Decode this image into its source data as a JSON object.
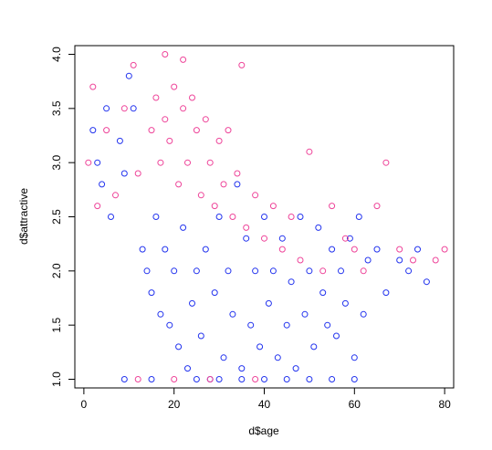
{
  "chart_data": {
    "type": "scatter",
    "title": "",
    "xlabel": "d$age",
    "ylabel": "d$attractive",
    "xlim": [
      -2,
      82
    ],
    "ylim": [
      0.92,
      4.08
    ],
    "x_ticks": [
      "0",
      "20",
      "40",
      "60",
      "80"
    ],
    "y_ticks": [
      "1.0",
      "1.5",
      "2.0",
      "2.5",
      "3.0",
      "3.5",
      "4.0"
    ],
    "grid": false,
    "legend": "none",
    "marker": "open-circle",
    "series": [
      {
        "color": "#2233ee",
        "points": [
          [
            2,
            3.3
          ],
          [
            3,
            3.0
          ],
          [
            4,
            2.8
          ],
          [
            5,
            3.5
          ],
          [
            6,
            2.5
          ],
          [
            8,
            3.2
          ],
          [
            9,
            2.9
          ],
          [
            10,
            3.8
          ],
          [
            11,
            3.5
          ],
          [
            13,
            2.2
          ],
          [
            14,
            2.0
          ],
          [
            15,
            1.8
          ],
          [
            16,
            2.5
          ],
          [
            17,
            1.6
          ],
          [
            18,
            2.2
          ],
          [
            19,
            1.5
          ],
          [
            20,
            2.0
          ],
          [
            21,
            1.3
          ],
          [
            22,
            2.4
          ],
          [
            23,
            1.1
          ],
          [
            24,
            1.7
          ],
          [
            25,
            2.0
          ],
          [
            26,
            1.4
          ],
          [
            27,
            2.2
          ],
          [
            28,
            1.0
          ],
          [
            29,
            1.8
          ],
          [
            30,
            2.5
          ],
          [
            31,
            1.2
          ],
          [
            32,
            2.0
          ],
          [
            33,
            1.6
          ],
          [
            34,
            2.8
          ],
          [
            35,
            1.1
          ],
          [
            36,
            2.3
          ],
          [
            37,
            1.5
          ],
          [
            38,
            2.0
          ],
          [
            39,
            1.3
          ],
          [
            40,
            2.5
          ],
          [
            41,
            1.7
          ],
          [
            42,
            2.0
          ],
          [
            43,
            1.2
          ],
          [
            44,
            2.3
          ],
          [
            45,
            1.5
          ],
          [
            46,
            1.9
          ],
          [
            47,
            1.1
          ],
          [
            48,
            2.5
          ],
          [
            49,
            1.6
          ],
          [
            50,
            2.0
          ],
          [
            51,
            1.3
          ],
          [
            52,
            2.4
          ],
          [
            53,
            1.8
          ],
          [
            54,
            1.5
          ],
          [
            55,
            2.2
          ],
          [
            56,
            1.4
          ],
          [
            57,
            2.0
          ],
          [
            58,
            1.7
          ],
          [
            59,
            2.3
          ],
          [
            60,
            1.2
          ],
          [
            61,
            2.5
          ],
          [
            62,
            1.6
          ],
          [
            63,
            2.1
          ],
          [
            65,
            2.2
          ],
          [
            67,
            1.8
          ],
          [
            70,
            2.1
          ],
          [
            72,
            2.0
          ],
          [
            74,
            2.2
          ],
          [
            76,
            1.9
          ],
          [
            60,
            1.0
          ],
          [
            55,
            1.0
          ],
          [
            50,
            1.0
          ],
          [
            45,
            1.0
          ],
          [
            40,
            1.0
          ],
          [
            35,
            1.0
          ],
          [
            30,
            1.0
          ],
          [
            25,
            1.0
          ],
          [
            15,
            1.0
          ],
          [
            9,
            1.0
          ]
        ]
      },
      {
        "color": "#ee4499",
        "points": [
          [
            1,
            3.0
          ],
          [
            2,
            3.7
          ],
          [
            3,
            2.6
          ],
          [
            5,
            3.3
          ],
          [
            7,
            2.7
          ],
          [
            9,
            3.5
          ],
          [
            11,
            3.9
          ],
          [
            12,
            2.9
          ],
          [
            15,
            3.3
          ],
          [
            16,
            3.6
          ],
          [
            17,
            3.0
          ],
          [
            18,
            3.4
          ],
          [
            18,
            4.0
          ],
          [
            19,
            3.2
          ],
          [
            20,
            3.7
          ],
          [
            21,
            2.8
          ],
          [
            22,
            3.5
          ],
          [
            22,
            3.95
          ],
          [
            23,
            3.0
          ],
          [
            24,
            3.6
          ],
          [
            25,
            3.3
          ],
          [
            26,
            2.7
          ],
          [
            27,
            3.4
          ],
          [
            28,
            3.0
          ],
          [
            29,
            2.6
          ],
          [
            30,
            3.2
          ],
          [
            31,
            2.8
          ],
          [
            32,
            3.3
          ],
          [
            33,
            2.5
          ],
          [
            34,
            2.9
          ],
          [
            35,
            3.9
          ],
          [
            36,
            2.4
          ],
          [
            38,
            2.7
          ],
          [
            40,
            2.3
          ],
          [
            42,
            2.6
          ],
          [
            44,
            2.2
          ],
          [
            46,
            2.5
          ],
          [
            48,
            2.1
          ],
          [
            50,
            3.1
          ],
          [
            53,
            2.0
          ],
          [
            55,
            2.6
          ],
          [
            58,
            2.3
          ],
          [
            60,
            2.2
          ],
          [
            62,
            2.0
          ],
          [
            65,
            2.6
          ],
          [
            67,
            3.0
          ],
          [
            70,
            2.2
          ],
          [
            73,
            2.1
          ],
          [
            78,
            2.1
          ],
          [
            80,
            2.2
          ],
          [
            20,
            1.0
          ],
          [
            28,
            1.0
          ],
          [
            38,
            1.0
          ],
          [
            12,
            1.0
          ]
        ]
      }
    ]
  }
}
